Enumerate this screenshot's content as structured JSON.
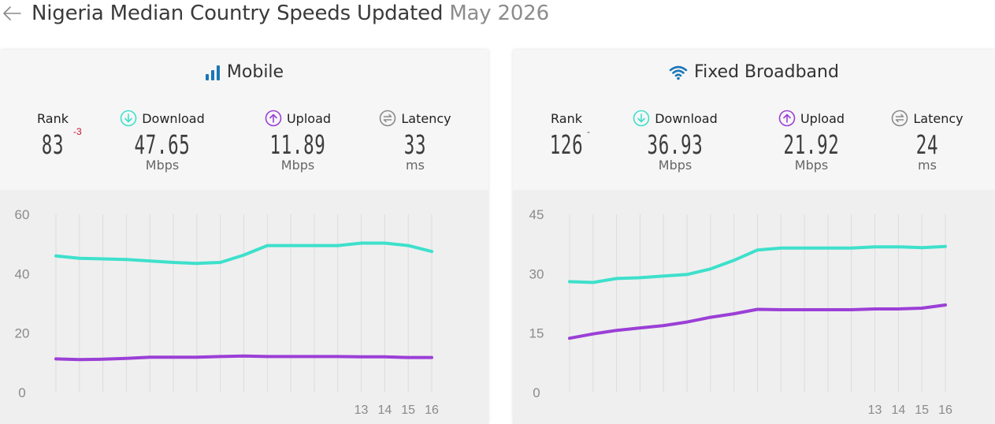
{
  "header": {
    "title": "Nigeria Median Country Speeds Updated",
    "date": "May 2026"
  },
  "colors": {
    "download": "#3ee0cb",
    "upload": "#9b3fd6",
    "latency_icon": "#8a8a8a",
    "rank_change": "#c8102e",
    "accent_icon": "#1a76b8"
  },
  "mobile": {
    "title": "Mobile",
    "icon": "signal-bars-icon",
    "rank_label": "Rank",
    "rank": "83",
    "rank_change": "-3",
    "download_label": "Download",
    "download": "47.65",
    "download_unit": "Mbps",
    "upload_label": "Upload",
    "upload": "11.89",
    "upload_unit": "Mbps",
    "latency_label": "Latency",
    "latency": "33",
    "latency_unit": "ms"
  },
  "fixed": {
    "title": "Fixed Broadband",
    "icon": "wifi-icon",
    "rank_label": "Rank",
    "rank": "126",
    "rank_change": "-",
    "download_label": "Download",
    "download": "36.93",
    "download_unit": "Mbps",
    "upload_label": "Upload",
    "upload": "21.92",
    "upload_unit": "Mbps",
    "latency_label": "Latency",
    "latency": "24",
    "latency_unit": "ms"
  },
  "chart_data": [
    {
      "type": "line",
      "yticks": [
        "60",
        "40",
        "20",
        "0"
      ],
      "ylim": [
        0,
        60
      ],
      "x": [
        "",
        "",
        "",
        "",
        "",
        "",
        "",
        "",
        "",
        "",
        "",
        "",
        "",
        "13",
        "14",
        "15",
        "16"
      ],
      "series": [
        {
          "color": "#3ee0cb",
          "values": [
            46,
            45.2,
            45,
            44.8,
            44.3,
            43.8,
            43.5,
            43.8,
            46.3,
            49.5,
            49.5,
            49.5,
            49.5,
            50.3,
            50.3,
            49.5,
            47.5
          ]
        },
        {
          "color": "#9b3fd6",
          "values": [
            11.3,
            11.1,
            11.2,
            11.5,
            11.9,
            11.9,
            11.9,
            12.1,
            12.3,
            12.1,
            12.1,
            12.1,
            12.1,
            12.0,
            12.0,
            11.8,
            11.8
          ]
        }
      ],
      "grid": "vertical"
    },
    {
      "type": "line",
      "yticks": [
        "45",
        "30",
        "15",
        "0"
      ],
      "ylim": [
        0,
        45
      ],
      "x": [
        "",
        "",
        "",
        "",
        "",
        "",
        "",
        "",
        "",
        "",
        "",
        "",
        "",
        "13",
        "14",
        "15",
        "16"
      ],
      "series": [
        {
          "color": "#3ee0cb",
          "values": [
            28,
            27.8,
            28.8,
            29,
            29.4,
            29.8,
            31.2,
            33.4,
            36,
            36.5,
            36.5,
            36.5,
            36.5,
            36.8,
            36.8,
            36.6,
            36.9
          ]
        },
        {
          "color": "#9b3fd6",
          "values": [
            13.7,
            14.8,
            15.7,
            16.3,
            16.9,
            17.8,
            19,
            19.9,
            21,
            20.9,
            20.9,
            20.9,
            20.9,
            21.1,
            21.1,
            21.3,
            22.1
          ]
        }
      ],
      "grid": "vertical"
    }
  ]
}
